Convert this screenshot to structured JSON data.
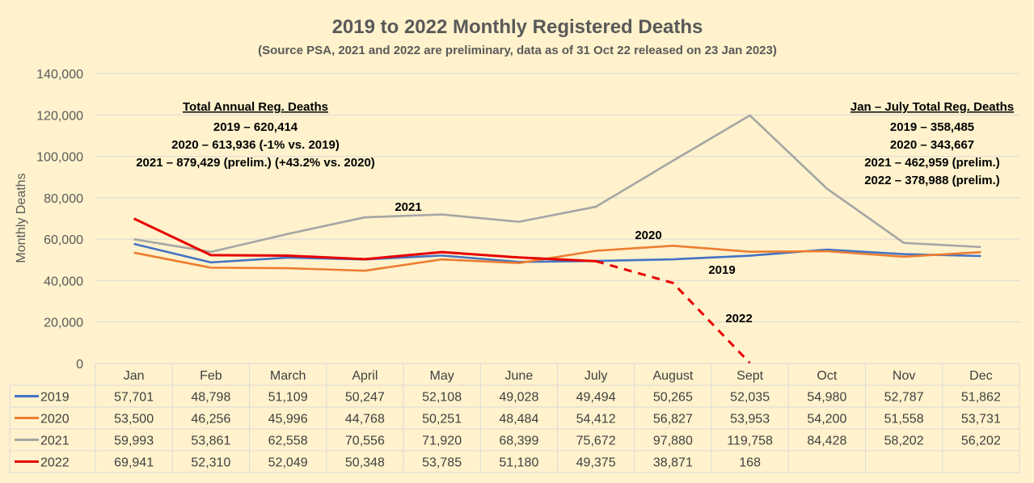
{
  "chart_data": {
    "type": "line",
    "title": "2019 to 2022 Monthly Registered Deaths",
    "subtitle": "(Source PSA, 2021 and 2022 are preliminary, data as of 31 Oct 22 released on 23 Jan 2023)",
    "ylabel": "Monthly Deaths",
    "xlabel": "",
    "ylim": [
      0,
      140000
    ],
    "yticks": [
      "0",
      "20,000",
      "40,000",
      "60,000",
      "80,000",
      "100,000",
      "120,000",
      "140,000"
    ],
    "grid": true,
    "categories": [
      "Jan",
      "Feb",
      "March",
      "April",
      "May",
      "June",
      "July",
      "August",
      "Sept",
      "Oct",
      "Nov",
      "Dec"
    ],
    "series": [
      {
        "name": "2019",
        "color": "#4472c4",
        "values": [
          57701,
          48798,
          51109,
          50247,
          52108,
          49028,
          49494,
          50265,
          52035,
          54980,
          52787,
          51862
        ],
        "labels": [
          "57,701",
          "48,798",
          "51,109",
          "50,247",
          "52,108",
          "49,028",
          "49,494",
          "50,265",
          "52,035",
          "54,980",
          "52,787",
          "51,862"
        ]
      },
      {
        "name": "2020",
        "color": "#ed7d31",
        "values": [
          53500,
          46256,
          45996,
          44768,
          50251,
          48484,
          54412,
          56827,
          53953,
          54200,
          51558,
          53731
        ],
        "labels": [
          "53,500",
          "46,256",
          "45,996",
          "44,768",
          "50,251",
          "48,484",
          "54,412",
          "56,827",
          "53,953",
          "54,200",
          "51,558",
          "53,731"
        ]
      },
      {
        "name": "2021",
        "color": "#a5a5a5",
        "values": [
          59993,
          53861,
          62558,
          70556,
          71920,
          68399,
          75672,
          97880,
          119758,
          84428,
          58202,
          56202
        ],
        "labels": [
          "59,993",
          "53,861",
          "62,558",
          "70,556",
          "71,920",
          "68,399",
          "75,672",
          "97,880",
          "119,758",
          "84,428",
          "58,202",
          "56,202"
        ]
      },
      {
        "name": "2022",
        "color": "#e60000",
        "values": [
          69941,
          52310,
          52049,
          50348,
          53785,
          51180,
          49375,
          38871,
          168,
          null,
          null,
          null
        ],
        "labels": [
          "69,941",
          "52,310",
          "52,049",
          "50,348",
          "53,785",
          "51,180",
          "49,375",
          "38,871",
          "168",
          "",
          "",
          ""
        ],
        "dashed_from_index": 6
      }
    ],
    "inline_labels": [
      "2021",
      "2020",
      "2019",
      "2022"
    ],
    "annotations": {
      "left_title": "Total Annual Reg. Deaths",
      "left_lines": [
        "2019 – 620,414",
        "2020 – 613,936 (-1% vs. 2019)",
        "2021 – 879,429 (prelim.) (+43.2% vs. 2020)"
      ],
      "right_title": "Jan – July Total Reg. Deaths",
      "right_lines": [
        "2019 – 358,485",
        "2020 – 343,667",
        "2021 – 462,959 (prelim.)",
        "2022 – 378,988 (prelim.)"
      ]
    }
  }
}
